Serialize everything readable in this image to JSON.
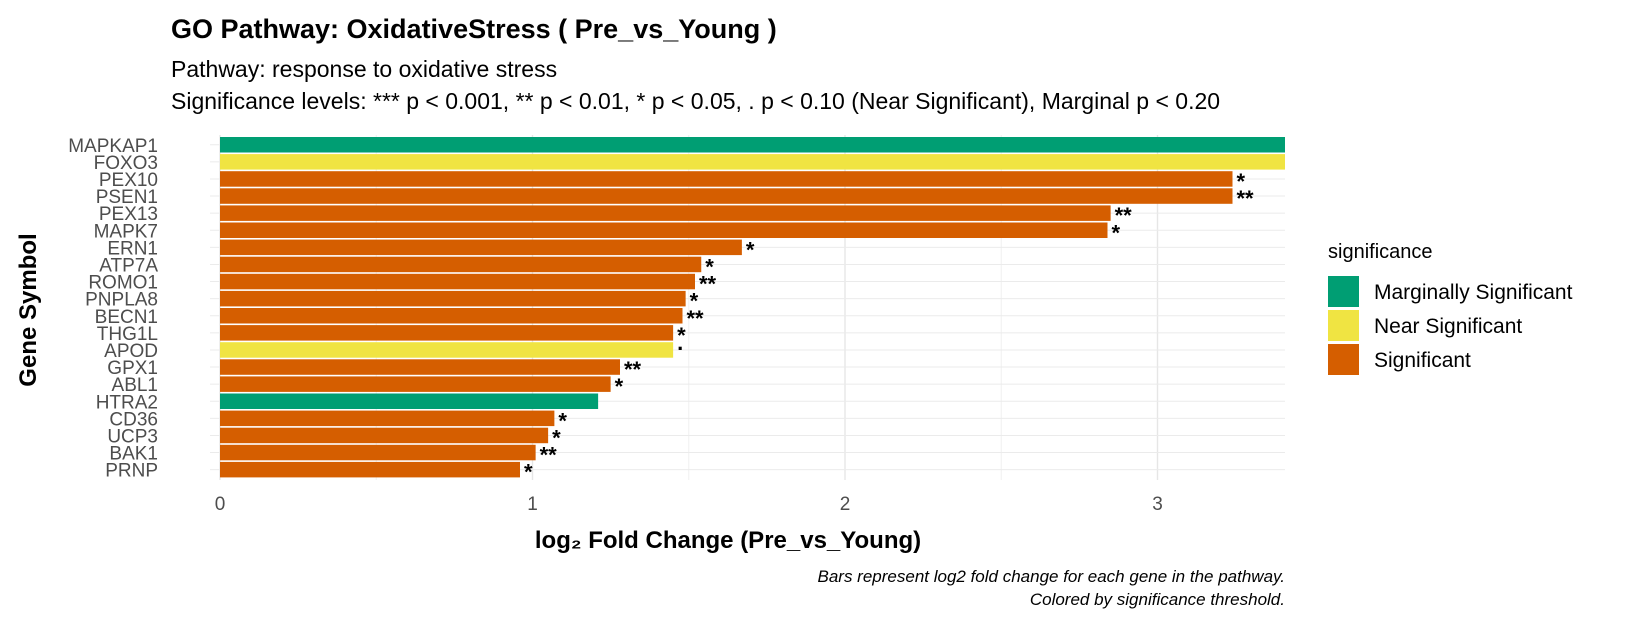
{
  "chart_data": {
    "type": "bar",
    "orientation": "horizontal",
    "title": "GO Pathway: OxidativeStress ( Pre_vs_Young )",
    "subtitle_lines": [
      "Pathway: response to oxidative stress",
      "Significance levels: *** p < 0.001, ** p < 0.01, * p < 0.05, . p < 0.10 (Near Significant), Marginal p < 0.20"
    ],
    "xlabel": "log₂ Fold Change (Pre_vs_Young)",
    "ylabel": "Gene Symbol",
    "xlim": [
      0,
      3.4
    ],
    "x_ticks": [
      "0",
      "1",
      "2",
      "3"
    ],
    "grid": true,
    "legend": {
      "title": "significance",
      "position": "right",
      "entries": [
        {
          "name": "Marginally Significant",
          "color": "#009E73"
        },
        {
          "name": "Near Significant",
          "color": "#F0E442"
        },
        {
          "name": "Significant",
          "color": "#D55E00"
        }
      ]
    },
    "caption_lines": [
      "Bars represent log2 fold change for each gene in the pathway.",
      "Colored by significance threshold."
    ],
    "categories": [
      "MAPKAP1",
      "FOXO3",
      "PEX10",
      "PSEN1",
      "PEX13",
      "MAPK7",
      "ERN1",
      "ATP7A",
      "ROMO1",
      "PNPLA8",
      "BECN1",
      "THG1L",
      "APOD",
      "GPX1",
      "ABL1",
      "HTRA2",
      "CD36",
      "UCP3",
      "BAK1",
      "PRNP"
    ],
    "values": [
      3.45,
      3.42,
      3.24,
      3.24,
      2.85,
      2.84,
      1.67,
      1.54,
      1.52,
      1.49,
      1.48,
      1.45,
      1.45,
      1.28,
      1.25,
      1.21,
      1.07,
      1.05,
      1.01,
      0.96
    ],
    "significance": [
      "Marginally Significant",
      "Near Significant",
      "Significant",
      "Significant",
      "Significant",
      "Significant",
      "Significant",
      "Significant",
      "Significant",
      "Significant",
      "Significant",
      "Significant",
      "Near Significant",
      "Significant",
      "Significant",
      "Marginally Significant",
      "Significant",
      "Significant",
      "Significant",
      "Significant"
    ],
    "labels": [
      "",
      "",
      "*",
      "**",
      "**",
      "*",
      "*",
      "*",
      "**",
      "*",
      "**",
      "*",
      ".",
      "**",
      "*",
      "",
      "*",
      "*",
      "**",
      "*"
    ]
  }
}
